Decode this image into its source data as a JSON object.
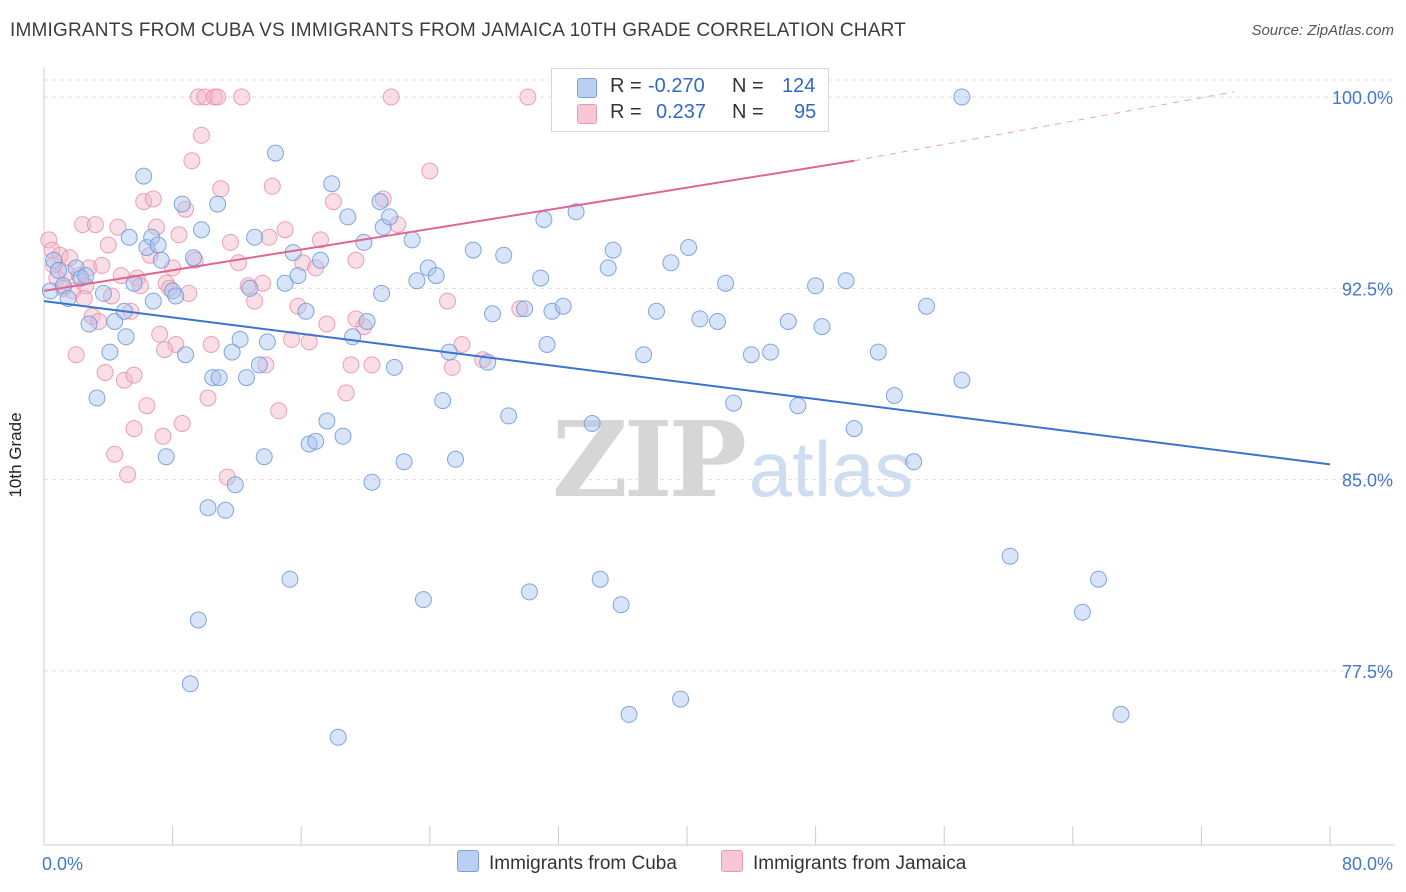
{
  "title": "IMMIGRANTS FROM CUBA VS IMMIGRANTS FROM JAMAICA 10TH GRADE CORRELATION CHART",
  "source": "Source: ZipAtlas.com",
  "watermark": {
    "zip": "ZIP",
    "atlas": "atlas"
  },
  "legend": {
    "rows": [
      {
        "r_label": "R =",
        "r_value": "-0.270",
        "n_label": "N =",
        "n_value": "124"
      },
      {
        "r_label": "R =",
        "r_value": "0.237",
        "n_label": "N =",
        "n_value": "95"
      }
    ]
  },
  "bottom_legend": {
    "cuba": "Immigrants from Cuba",
    "jamaica": "Immigrants from Jamaica"
  },
  "colors": {
    "cuba_fill": "#a9c4ef",
    "cuba_stroke": "#6f98da",
    "cuba_line": "#3a74d0",
    "jamaica_fill": "#f5b5c8",
    "jamaica_stroke": "#e98aa8",
    "jamaica_line": "#e0668f",
    "tick_label": "#4477cc",
    "grid": "#dddddd"
  },
  "chart_data": {
    "type": "scatter",
    "title": "IMMIGRANTS FROM CUBA VS IMMIGRANTS FROM JAMAICA 10TH GRADE CORRELATION CHART",
    "xlabel": "",
    "ylabel": "10th Grade",
    "xlim": [
      0,
      80
    ],
    "ylim": [
      70,
      100.5
    ],
    "x_tick_labels": [
      "0.0%",
      "80.0%"
    ],
    "y_ticks": [
      77.5,
      85.0,
      92.5,
      100.0
    ],
    "y_tick_labels": [
      "77.5%",
      "85.0%",
      "92.5%",
      "100.0%"
    ],
    "grid": "horizontal dashed",
    "series": [
      {
        "name": "Immigrants from Cuba",
        "R": -0.27,
        "N": 124,
        "trend": {
          "x": [
            0,
            80
          ],
          "y": [
            92.0,
            85.6
          ]
        },
        "points": [
          [
            0.4,
            92.4
          ],
          [
            0.6,
            93.6
          ],
          [
            0.9,
            93.2
          ],
          [
            1.2,
            92.6
          ],
          [
            1.5,
            92.1
          ],
          [
            2.0,
            93.3
          ],
          [
            2.3,
            92.9
          ],
          [
            2.8,
            91.1
          ],
          [
            3.3,
            88.2
          ],
          [
            3.7,
            92.3
          ],
          [
            4.1,
            90.0
          ],
          [
            4.4,
            91.2
          ],
          [
            5.1,
            90.6
          ],
          [
            5.3,
            94.5
          ],
          [
            5.6,
            92.7
          ],
          [
            6.2,
            96.9
          ],
          [
            6.4,
            94.1
          ],
          [
            6.7,
            94.5
          ],
          [
            7.1,
            94.2
          ],
          [
            7.3,
            93.6
          ],
          [
            7.6,
            85.9
          ],
          [
            8.0,
            92.4
          ],
          [
            8.2,
            92.2
          ],
          [
            8.6,
            95.8
          ],
          [
            8.8,
            89.9
          ],
          [
            9.1,
            77.0
          ],
          [
            9.3,
            93.7
          ],
          [
            9.6,
            79.5
          ],
          [
            9.8,
            94.8
          ],
          [
            10.2,
            83.9
          ],
          [
            10.5,
            89.0
          ],
          [
            10.8,
            95.8
          ],
          [
            10.9,
            89.0
          ],
          [
            11.3,
            83.8
          ],
          [
            11.7,
            90.0
          ],
          [
            11.9,
            84.8
          ],
          [
            12.2,
            90.5
          ],
          [
            12.6,
            89.0
          ],
          [
            13.1,
            94.5
          ],
          [
            13.4,
            89.5
          ],
          [
            13.7,
            85.9
          ],
          [
            13.9,
            90.4
          ],
          [
            14.4,
            97.8
          ],
          [
            15.0,
            92.7
          ],
          [
            15.3,
            81.1
          ],
          [
            15.5,
            93.9
          ],
          [
            15.8,
            93.0
          ],
          [
            16.3,
            91.6
          ],
          [
            16.5,
            86.4
          ],
          [
            16.9,
            86.5
          ],
          [
            17.2,
            93.6
          ],
          [
            17.6,
            87.3
          ],
          [
            17.9,
            96.6
          ],
          [
            18.3,
            74.9
          ],
          [
            18.6,
            86.7
          ],
          [
            18.9,
            95.3
          ],
          [
            19.2,
            90.6
          ],
          [
            19.9,
            94.3
          ],
          [
            20.1,
            91.2
          ],
          [
            20.4,
            84.9
          ],
          [
            20.9,
            95.9
          ],
          [
            21.1,
            94.9
          ],
          [
            21.5,
            95.3
          ],
          [
            21.8,
            89.4
          ],
          [
            22.4,
            85.7
          ],
          [
            22.9,
            94.4
          ],
          [
            23.2,
            92.8
          ],
          [
            23.6,
            80.3
          ],
          [
            23.9,
            93.3
          ],
          [
            24.4,
            93.0
          ],
          [
            24.8,
            88.1
          ],
          [
            25.2,
            90.0
          ],
          [
            25.6,
            85.8
          ],
          [
            26.7,
            94.0
          ],
          [
            27.6,
            89.6
          ],
          [
            27.9,
            91.5
          ],
          [
            28.6,
            93.8
          ],
          [
            28.9,
            87.5
          ],
          [
            29.9,
            91.7
          ],
          [
            30.2,
            80.6
          ],
          [
            30.9,
            92.9
          ],
          [
            31.1,
            95.2
          ],
          [
            31.3,
            90.3
          ],
          [
            31.6,
            91.6
          ],
          [
            32.3,
            91.8
          ],
          [
            33.1,
            95.5
          ],
          [
            34.1,
            87.2
          ],
          [
            34.6,
            81.1
          ],
          [
            35.1,
            93.3
          ],
          [
            35.4,
            94.0
          ],
          [
            35.9,
            80.1
          ],
          [
            36.4,
            75.8
          ],
          [
            37.3,
            89.9
          ],
          [
            38.1,
            91.6
          ],
          [
            39.0,
            93.5
          ],
          [
            39.6,
            76.4
          ],
          [
            40.1,
            94.1
          ],
          [
            40.8,
            91.3
          ],
          [
            41.9,
            91.2
          ],
          [
            42.4,
            92.7
          ],
          [
            42.9,
            88.0
          ],
          [
            44.0,
            89.9
          ],
          [
            45.2,
            90.0
          ],
          [
            46.3,
            91.2
          ],
          [
            46.9,
            87.9
          ],
          [
            48.0,
            92.6
          ],
          [
            48.4,
            91.0
          ],
          [
            49.9,
            92.8
          ],
          [
            50.4,
            87.0
          ],
          [
            51.9,
            90.0
          ],
          [
            52.9,
            88.3
          ],
          [
            54.1,
            85.7
          ],
          [
            54.9,
            91.8
          ],
          [
            57.1,
            88.9
          ],
          [
            57.1,
            100.0
          ],
          [
            60.1,
            82.0
          ],
          [
            64.6,
            79.8
          ],
          [
            65.6,
            81.1
          ],
          [
            67.0,
            75.8
          ],
          [
            5.0,
            91.6
          ],
          [
            2.6,
            93.0
          ],
          [
            6.8,
            92.0
          ],
          [
            12.8,
            92.5
          ],
          [
            21.0,
            92.3
          ]
        ]
      },
      {
        "name": "Immigrants from Jamaica",
        "R": 0.237,
        "N": 95,
        "trend": {
          "x": [
            0,
            50.4
          ],
          "y": [
            92.4,
            97.5
          ]
        },
        "trend_extension": {
          "x": [
            50.4,
            74.0
          ],
          "y": [
            97.5,
            100.2
          ]
        },
        "points": [
          [
            0.3,
            94.4
          ],
          [
            0.5,
            94.0
          ],
          [
            0.6,
            93.4
          ],
          [
            0.8,
            92.9
          ],
          [
            1.0,
            93.8
          ],
          [
            1.2,
            92.5
          ],
          [
            1.4,
            93.1
          ],
          [
            1.6,
            93.7
          ],
          [
            1.8,
            92.4
          ],
          [
            2.0,
            89.9
          ],
          [
            2.2,
            93.0
          ],
          [
            2.4,
            95.0
          ],
          [
            2.6,
            92.6
          ],
          [
            2.8,
            93.3
          ],
          [
            3.0,
            91.4
          ],
          [
            3.2,
            95.0
          ],
          [
            3.4,
            91.2
          ],
          [
            3.6,
            93.4
          ],
          [
            3.8,
            89.2
          ],
          [
            4.0,
            94.2
          ],
          [
            4.2,
            92.2
          ],
          [
            4.4,
            86.0
          ],
          [
            4.6,
            94.9
          ],
          [
            4.8,
            93.0
          ],
          [
            5.0,
            88.9
          ],
          [
            5.2,
            85.2
          ],
          [
            5.4,
            91.6
          ],
          [
            5.6,
            89.1
          ],
          [
            5.8,
            92.9
          ],
          [
            6.0,
            92.6
          ],
          [
            6.2,
            95.9
          ],
          [
            6.4,
            87.9
          ],
          [
            6.6,
            93.8
          ],
          [
            6.8,
            96.0
          ],
          [
            7.0,
            94.9
          ],
          [
            7.2,
            90.7
          ],
          [
            7.4,
            86.7
          ],
          [
            7.6,
            92.7
          ],
          [
            7.8,
            92.5
          ],
          [
            8.0,
            93.3
          ],
          [
            8.2,
            90.3
          ],
          [
            8.4,
            94.6
          ],
          [
            8.6,
            87.2
          ],
          [
            8.8,
            95.6
          ],
          [
            9.0,
            92.3
          ],
          [
            9.2,
            97.5
          ],
          [
            9.4,
            93.6
          ],
          [
            9.6,
            100.0
          ],
          [
            9.8,
            98.5
          ],
          [
            10.0,
            100.0
          ],
          [
            10.2,
            88.2
          ],
          [
            10.4,
            90.3
          ],
          [
            10.6,
            100.0
          ],
          [
            10.8,
            100.0
          ],
          [
            11.0,
            96.4
          ],
          [
            11.4,
            85.1
          ],
          [
            12.1,
            93.5
          ],
          [
            12.3,
            100.0
          ],
          [
            12.7,
            92.6
          ],
          [
            13.1,
            92.0
          ],
          [
            13.6,
            92.7
          ],
          [
            14.0,
            94.5
          ],
          [
            14.2,
            96.5
          ],
          [
            14.6,
            87.7
          ],
          [
            15.0,
            94.8
          ],
          [
            15.4,
            90.5
          ],
          [
            15.8,
            91.8
          ],
          [
            16.1,
            93.5
          ],
          [
            16.5,
            90.4
          ],
          [
            16.9,
            93.3
          ],
          [
            17.2,
            94.4
          ],
          [
            17.6,
            91.1
          ],
          [
            18.0,
            95.9
          ],
          [
            18.8,
            88.4
          ],
          [
            19.1,
            89.5
          ],
          [
            19.4,
            93.6
          ],
          [
            19.9,
            91.0
          ],
          [
            20.4,
            89.5
          ],
          [
            21.1,
            96.0
          ],
          [
            21.6,
            100.0
          ],
          [
            22.0,
            95.0
          ],
          [
            24.0,
            97.1
          ],
          [
            25.4,
            89.4
          ],
          [
            26.0,
            90.3
          ],
          [
            27.3,
            89.7
          ],
          [
            29.6,
            91.7
          ],
          [
            30.1,
            100.0
          ],
          [
            35.8,
            100.0
          ],
          [
            13.8,
            89.5
          ],
          [
            2.5,
            92.1
          ],
          [
            5.6,
            87.0
          ],
          [
            7.5,
            90.1
          ],
          [
            11.6,
            94.3
          ],
          [
            19.4,
            91.3
          ],
          [
            25.1,
            92.0
          ]
        ]
      }
    ]
  }
}
